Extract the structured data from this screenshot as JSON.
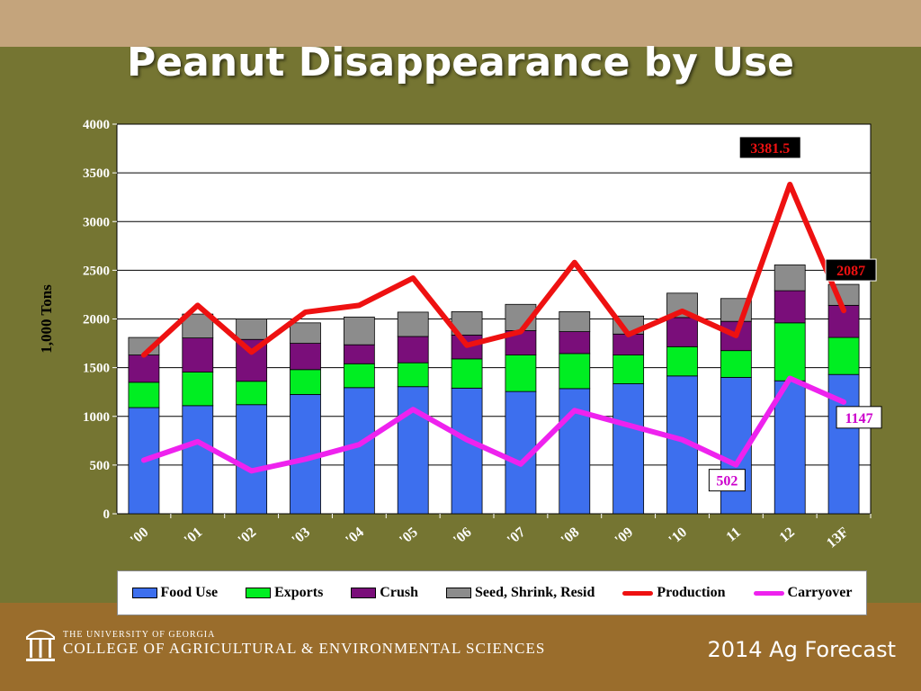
{
  "slide": {
    "title": "Peanut Disappearance by Use",
    "footer_univ": "THE UNIVERSITY OF GEORGIA",
    "footer_college": "COLLEGE OF AGRICULTURAL & ENVIRONMENTAL SCIENCES",
    "footer_right": "2014 Ag Forecast"
  },
  "colors": {
    "food": "#3d6fee",
    "exports": "#00ee22",
    "crush": "#7a0e7a",
    "seed": "#8c8c8c",
    "production": "#ee1111",
    "carryover": "#ee22ee"
  },
  "chart_data": {
    "type": "bar",
    "stacked": true,
    "ylabel": "1,000 Tons",
    "ylim": [
      0,
      4000
    ],
    "yticks": [
      0,
      500,
      1000,
      1500,
      2000,
      2500,
      3000,
      3500,
      4000
    ],
    "grid": true,
    "categories": [
      "'00",
      "'01",
      "'02",
      "'03",
      "'04",
      "'05",
      "'06",
      "'07",
      "'08",
      "'09",
      "'10",
      "11",
      "12",
      "13F"
    ],
    "series": [
      {
        "name": "Food Use",
        "type": "bar",
        "values": [
          1090,
          1110,
          1120,
          1225,
          1295,
          1305,
          1290,
          1255,
          1285,
          1335,
          1415,
          1400,
          1365,
          1430
        ]
      },
      {
        "name": "Exports",
        "type": "bar",
        "values": [
          260,
          345,
          240,
          255,
          245,
          245,
          300,
          375,
          360,
          295,
          300,
          275,
          595,
          380
        ]
      },
      {
        "name": "Crush",
        "type": "bar",
        "values": [
          280,
          350,
          430,
          270,
          195,
          270,
          245,
          250,
          225,
          215,
          300,
          300,
          330,
          330
        ]
      },
      {
        "name": "Seed, Shrink, Resid",
        "type": "bar",
        "values": [
          180,
          245,
          210,
          210,
          285,
          250,
          240,
          270,
          205,
          185,
          250,
          235,
          265,
          215
        ]
      },
      {
        "name": "Production",
        "type": "line",
        "values": [
          1630,
          2140,
          1660,
          2070,
          2140,
          2420,
          1730,
          1870,
          2580,
          1840,
          2080,
          1830,
          3381.5,
          2087
        ]
      },
      {
        "name": "Carryover",
        "type": "line",
        "values": [
          550,
          740,
          440,
          560,
          710,
          1070,
          760,
          510,
          1060,
          910,
          760,
          502,
          1390,
          1147
        ]
      }
    ],
    "annotations": [
      {
        "series": "Production",
        "category": "12",
        "text": "3381.5"
      },
      {
        "series": "Production",
        "category": "13F",
        "text": "2087"
      },
      {
        "series": "Carryover",
        "category": "11",
        "text": "502"
      },
      {
        "series": "Carryover",
        "category": "13F",
        "text": "1147"
      }
    ],
    "legend": "bottom"
  }
}
